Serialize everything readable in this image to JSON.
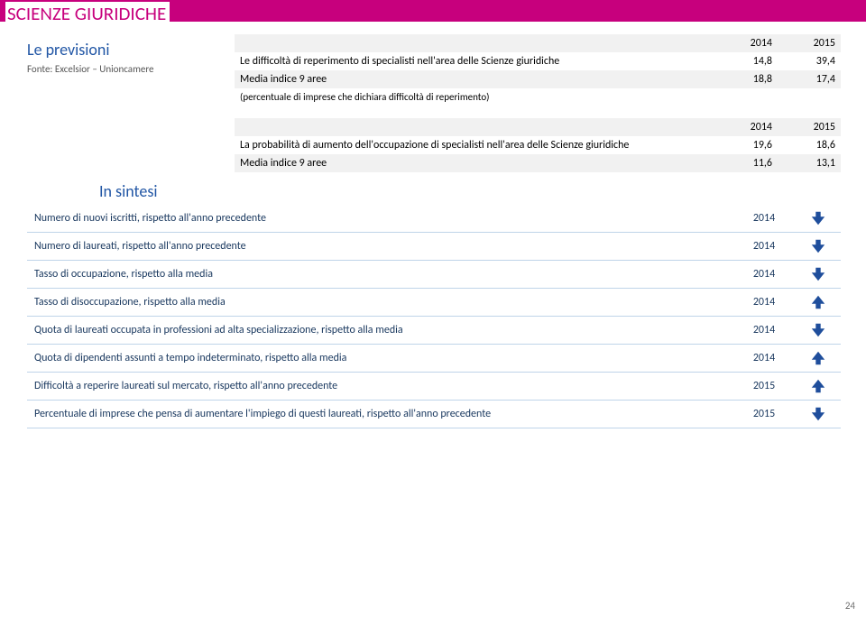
{
  "page": {
    "title": "SCIENZE GIURIDICHE",
    "subtitle": "Le previsioni",
    "source": "Fonte: Excelsior – Unioncamere",
    "sintesi_label": "In sintesi",
    "pagenum": "24"
  },
  "table_a": {
    "year_headers": [
      "2014",
      "2015"
    ],
    "row1_label": "Le difficoltà di reperimento di specialisti nell'area delle Scienze giuridiche",
    "row1_vals": [
      "14,8",
      "39,4"
    ],
    "row2_label": "Media indice 9 aree",
    "row2_vals": [
      "18,8",
      "17,4"
    ],
    "row3_label": "(percentuale di imprese che dichiara difficoltà di reperimento)"
  },
  "table_b": {
    "year_headers": [
      "2014",
      "2015"
    ],
    "row1_label": "La probabilità di aumento dell'occupazione di specialisti nell'area delle Scienze giuridiche",
    "row1_vals": [
      "19,6",
      "18,6"
    ],
    "row2_label": "Media indice 9 aree",
    "row2_vals": [
      "11,6",
      "13,1"
    ]
  },
  "sintesi": {
    "rows": [
      {
        "label": "Numero di nuovi iscritti, rispetto all'anno precedente",
        "year": "2014",
        "dir": "down"
      },
      {
        "label": "Numero di laureati, rispetto all'anno precedente",
        "year": "2014",
        "dir": "down"
      },
      {
        "label": "Tasso di occupazione, rispetto alla media",
        "year": "2014",
        "dir": "down"
      },
      {
        "label": "Tasso di disoccupazione, rispetto alla media",
        "year": "2014",
        "dir": "up"
      },
      {
        "label": "Quota di laureati occupata in professioni ad alta specializzazione, rispetto alla media",
        "year": "2014",
        "dir": "down"
      },
      {
        "label": "Quota di dipendenti assunti a tempo indeterminato, rispetto alla media",
        "year": "2014",
        "dir": "up"
      },
      {
        "label": "Difficoltà a reperire laureati sul mercato, rispetto all'anno precedente",
        "year": "2015",
        "dir": "up"
      },
      {
        "label": "Percentuale di imprese che pensa di aumentare l'impiego di questi laureati, rispetto all'anno precedente",
        "year": "2015",
        "dir": "down"
      }
    ]
  },
  "colors": {
    "accent_magenta": "#c7007d",
    "heading_blue": "#2156a5",
    "table_text_blue": "#17365d",
    "row_border": "#bfd4e9",
    "shade_bg": "#f1f1f1",
    "arrow_blue": "#1f4e9c"
  }
}
